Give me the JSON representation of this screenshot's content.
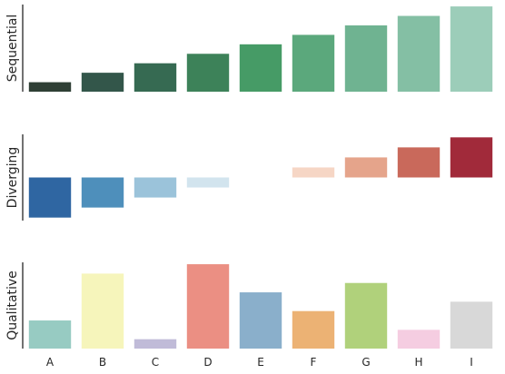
{
  "chart_data": [
    {
      "type": "bar",
      "ylabel": "Sequential",
      "categories": [
        "A",
        "B",
        "C",
        "D",
        "E",
        "F",
        "G",
        "H",
        "I"
      ],
      "values": [
        1,
        2,
        3,
        4,
        5,
        6,
        7,
        8,
        9
      ],
      "ylim": [
        0,
        9.2
      ],
      "colors": [
        "#2f3f35",
        "#33564a",
        "#366a52",
        "#3d8259",
        "#469b66",
        "#5ba87c",
        "#6fb391",
        "#84bfa4",
        "#9ccdb9"
      ],
      "grid": false,
      "legend": "none"
    },
    {
      "type": "bar",
      "ylabel": "Diverging",
      "categories": [
        "A",
        "B",
        "C",
        "D",
        "E",
        "F",
        "G",
        "H",
        "I"
      ],
      "values": [
        -4,
        -3,
        -2,
        -1,
        0,
        1,
        2,
        3,
        4
      ],
      "ylim": [
        -4.3,
        4.3
      ],
      "colors": [
        "#2f66a2",
        "#4e8fbb",
        "#9bc3da",
        "#d2e4ee",
        "#f7f7f7",
        "#f6d6c5",
        "#e5a48b",
        "#c9695b",
        "#a12a3a"
      ],
      "grid": false,
      "legend": "none"
    },
    {
      "type": "bar",
      "ylabel": "Qualitative",
      "categories": [
        "A",
        "B",
        "C",
        "D",
        "E",
        "F",
        "G",
        "H",
        "I"
      ],
      "values": [
        3,
        8,
        1,
        9,
        6,
        4,
        7,
        2,
        5
      ],
      "ylim": [
        0,
        9.2
      ],
      "colors": [
        "#97cbc2",
        "#f6f5bb",
        "#c0bbd8",
        "#eb8f83",
        "#8aafcb",
        "#ecb274",
        "#b0d17b",
        "#f5cde1",
        "#d8d8d8"
      ],
      "grid": false,
      "legend": "none"
    }
  ]
}
